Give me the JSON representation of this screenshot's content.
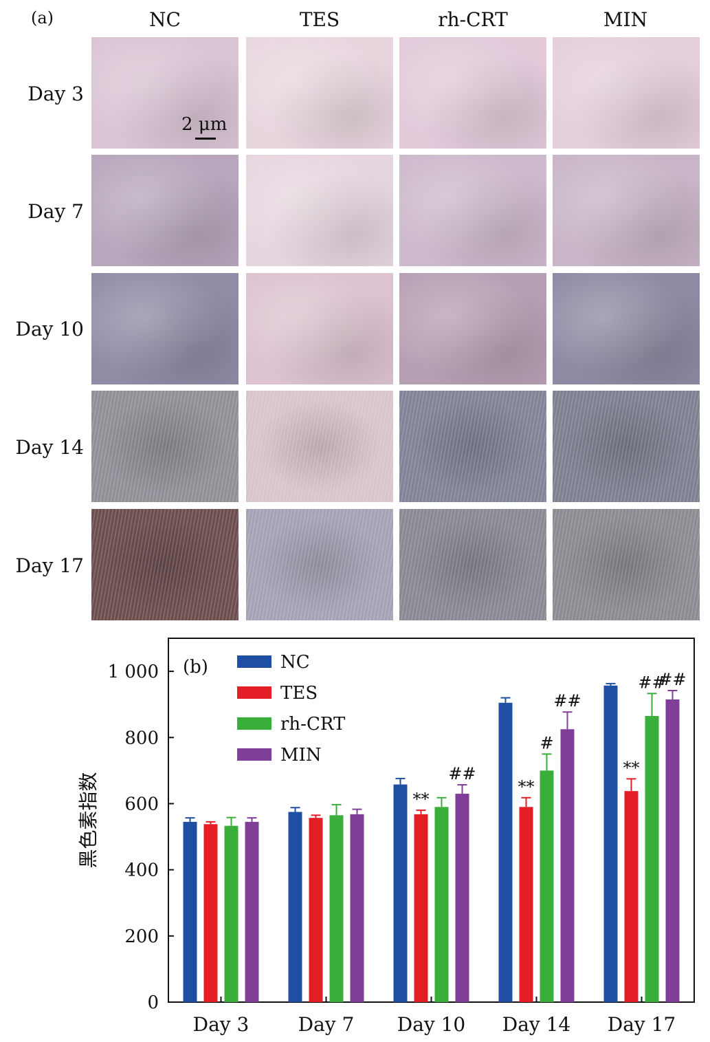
{
  "panel_a": {
    "label": "(a)",
    "columns": [
      "NC",
      "TES",
      "rh-CRT",
      "MIN"
    ],
    "rows": [
      "Day 3",
      "Day 7",
      "Day 10",
      "Day 14",
      "Day 17"
    ],
    "scale_bar": "2 μm",
    "photos": [
      [
        "#d9c4d3",
        "#e8d6df",
        "#e2cad9",
        "#e4cfda"
      ],
      [
        "#b7a6bc",
        "#e6d6df",
        "#cdb9cc",
        "#c8b5c7"
      ],
      [
        "#8f8ca6",
        "#dcc3cf",
        "#b79fb3",
        "#8f8aa3"
      ],
      [
        "#8f8f96",
        "#d8c4cc",
        "#7f8496",
        "#7e8090"
      ],
      [
        "#6d4e4f",
        "#a6a2b5",
        "#8a8892",
        "#8d8a91"
      ]
    ]
  },
  "chart_data": {
    "type": "bar",
    "panel_label": "(b)",
    "ylabel": "黑色素指数",
    "xlabel": "",
    "ylim": [
      0,
      1100
    ],
    "yticks": [
      0,
      200,
      400,
      600,
      800,
      1000
    ],
    "ytick_labels": [
      "0",
      "200",
      "400",
      "600",
      "800",
      "1 000"
    ],
    "categories": [
      "Day 3",
      "Day 7",
      "Day 10",
      "Day 14",
      "Day 17"
    ],
    "legend_position": "top-left",
    "series": [
      {
        "name": "NC",
        "color": "#1f4fa3",
        "values": [
          545,
          575,
          658,
          905,
          957
        ],
        "errors": [
          12,
          13,
          18,
          15,
          6
        ],
        "annotations": [
          "",
          "",
          "",
          "",
          ""
        ]
      },
      {
        "name": "TES",
        "color": "#e51d24",
        "values": [
          538,
          557,
          568,
          590,
          638
        ],
        "errors": [
          7,
          8,
          12,
          28,
          37
        ],
        "annotations": [
          "",
          "",
          "**",
          "**",
          "**"
        ]
      },
      {
        "name": "rh-CRT",
        "color": "#39ae3b",
        "values": [
          533,
          565,
          590,
          700,
          865
        ],
        "errors": [
          25,
          32,
          28,
          50,
          68
        ],
        "annotations": [
          "",
          "",
          "",
          "#",
          "##"
        ]
      },
      {
        "name": "MIN",
        "color": "#7f3f98",
        "values": [
          545,
          568,
          630,
          825,
          915
        ],
        "errors": [
          12,
          15,
          27,
          52,
          27
        ],
        "annotations": [
          "",
          "",
          "##",
          "##",
          "##"
        ]
      }
    ]
  }
}
